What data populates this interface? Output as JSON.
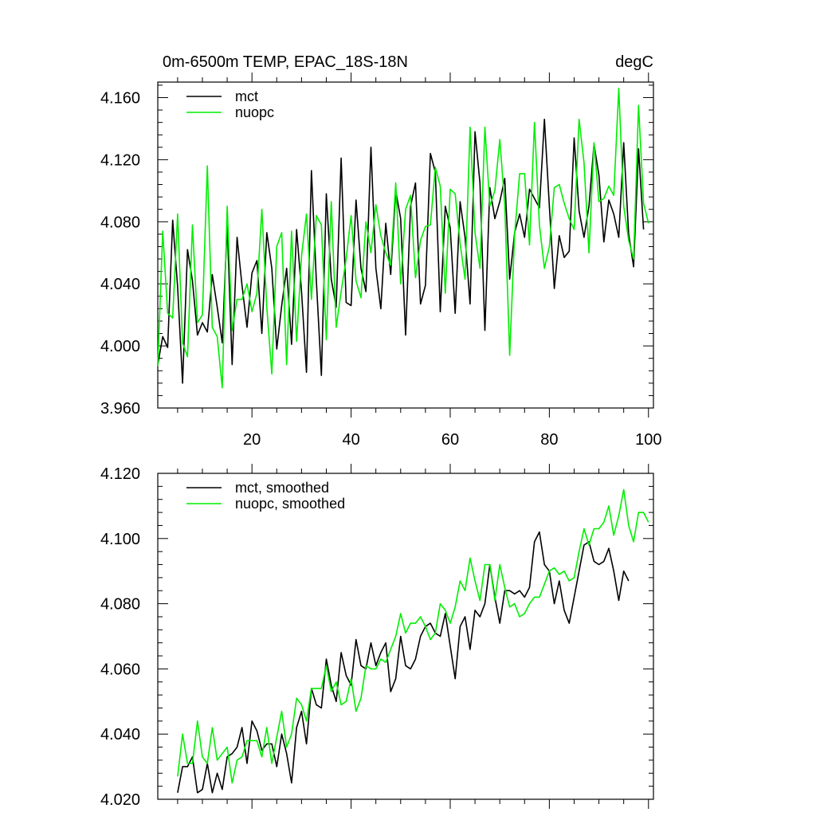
{
  "chart_data": [
    {
      "type": "line",
      "title": "0m-6500m TEMP, EPAC_18S-18N",
      "units": "degC",
      "xlim": [
        1,
        101
      ],
      "ylim": [
        3.96,
        4.17
      ],
      "x_ticks": [
        20,
        40,
        60,
        80,
        100
      ],
      "y_ticks": [
        3.96,
        4.0,
        4.04,
        4.08,
        4.12,
        4.16
      ],
      "y_tick_labels": [
        "3.960",
        "4.000",
        "4.040",
        "4.080",
        "4.120",
        "4.160"
      ],
      "legend_position": "top-left",
      "series": [
        {
          "name": "mct",
          "color": "#000000",
          "x_start": 1,
          "values": [
            3.988,
            4.006,
            3.999,
            4.081,
            4.038,
            3.976,
            4.062,
            4.042,
            4.007,
            4.015,
            4.009,
            4.046,
            4.025,
            4.002,
            4.078,
            3.988,
            4.07,
            4.039,
            4.012,
            4.047,
            4.055,
            4.008,
            4.073,
            4.05,
            3.998,
            4.026,
            4.05,
            4.001,
            4.075,
            4.035,
            3.983,
            4.113,
            4.042,
            3.981,
            4.098,
            4.043,
            4.025,
            4.121,
            4.028,
            4.026,
            4.094,
            4.05,
            4.035,
            4.128,
            4.05,
            4.024,
            4.079,
            4.046,
            4.1,
            4.082,
            4.007,
            4.09,
            4.105,
            4.027,
            4.039,
            4.124,
            4.112,
            4.022,
            4.09,
            4.076,
            4.021,
            4.093,
            4.07,
            4.027,
            4.138,
            4.105,
            4.01,
            4.102,
            4.082,
            4.093,
            4.108,
            4.043,
            4.073,
            4.085,
            4.07,
            4.101,
            4.095,
            4.089,
            4.146,
            4.09,
            4.037,
            4.071,
            4.057,
            4.061,
            4.134,
            4.087,
            4.07,
            4.09,
            4.13,
            4.11,
            4.067,
            4.094,
            4.085,
            4.07,
            4.131,
            4.072,
            4.051,
            4.127,
            4.075
          ]
        },
        {
          "name": "nuopc",
          "color": "#00ee00",
          "x_start": 1,
          "values": [
            3.987,
            4.074,
            4.021,
            4.018,
            4.085,
            4.002,
            3.993,
            4.078,
            4.015,
            4.02,
            4.116,
            4.012,
            4.006,
            3.973,
            4.09,
            4.01,
            4.03,
            4.03,
            4.04,
            4.022,
            4.034,
            4.088,
            4.025,
            3.982,
            4.064,
            4.073,
            3.988,
            4.074,
            4.003,
            4.058,
            4.085,
            4.03,
            4.084,
            4.078,
            4.004,
            4.093,
            4.012,
            4.035,
            4.056,
            4.084,
            4.042,
            4.031,
            4.08,
            4.06,
            4.091,
            4.071,
            4.06,
            4.052,
            4.105,
            4.04,
            4.088,
            4.097,
            4.044,
            4.068,
            4.077,
            4.078,
            4.115,
            4.103,
            4.034,
            4.101,
            4.098,
            4.066,
            4.043,
            4.141,
            4.073,
            4.05,
            4.141,
            4.09,
            4.1,
            4.133,
            4.091,
            3.994,
            4.072,
            4.111,
            4.111,
            4.065,
            4.144,
            4.078,
            4.05,
            4.064,
            4.102,
            4.104,
            4.092,
            4.082,
            4.075,
            4.146,
            4.118,
            4.06,
            4.131,
            4.093,
            4.095,
            4.103,
            4.097,
            4.166,
            4.09,
            4.068,
            4.056,
            4.155,
            4.092,
            4.079
          ]
        }
      ]
    },
    {
      "type": "line",
      "title": "",
      "xlim": [
        1,
        101
      ],
      "ylim": [
        4.02,
        4.12
      ],
      "y_ticks": [
        4.02,
        4.04,
        4.06,
        4.08,
        4.1,
        4.12
      ],
      "y_tick_labels": [
        "4.020",
        "4.040",
        "4.060",
        "4.080",
        "4.100",
        "4.120"
      ],
      "legend_position": "top-left",
      "series": [
        {
          "name": "mct, smoothed",
          "color": "#000000",
          "x_start": 5,
          "values": [
            4.022,
            4.03,
            4.03,
            4.033,
            4.022,
            4.023,
            4.031,
            4.022,
            4.028,
            4.023,
            4.033,
            4.034,
            4.036,
            4.042,
            4.031,
            4.044,
            4.041,
            4.035,
            4.037,
            4.037,
            4.03,
            4.04,
            4.034,
            4.025,
            4.042,
            4.047,
            4.037,
            4.054,
            4.049,
            4.048,
            4.063,
            4.055,
            4.05,
            4.065,
            4.058,
            4.055,
            4.069,
            4.061,
            4.06,
            4.068,
            4.061,
            4.065,
            4.068,
            4.053,
            4.057,
            4.07,
            4.061,
            4.06,
            4.063,
            4.07,
            4.073,
            4.074,
            4.071,
            4.07,
            4.077,
            4.067,
            4.057,
            4.073,
            4.076,
            4.066,
            4.078,
            4.076,
            4.08,
            4.092,
            4.082,
            4.074,
            4.084,
            4.084,
            4.083,
            4.084,
            4.082,
            4.085,
            4.099,
            4.102,
            4.092,
            4.09,
            4.08,
            4.087,
            4.078,
            4.074,
            4.082,
            4.09,
            4.098,
            4.099,
            4.093,
            4.092,
            4.093,
            4.097,
            4.09,
            4.081,
            4.09,
            4.087
          ]
        },
        {
          "name": "nuopc, smoothed",
          "color": "#00ee00",
          "x_start": 5,
          "values": [
            4.027,
            4.04,
            4.031,
            4.031,
            4.044,
            4.033,
            4.031,
            4.042,
            4.032,
            4.034,
            4.036,
            4.025,
            4.032,
            4.033,
            4.038,
            4.038,
            4.038,
            4.033,
            4.042,
            4.031,
            4.039,
            4.047,
            4.036,
            4.04,
            4.051,
            4.049,
            4.044,
            4.054,
            4.054,
            4.054,
            4.061,
            4.053,
            4.056,
            4.049,
            4.05,
            4.057,
            4.047,
            4.051,
            4.061,
            4.06,
            4.06,
            4.063,
            4.062,
            4.066,
            4.07,
            4.077,
            4.071,
            4.074,
            4.074,
            4.076,
            4.073,
            4.069,
            4.071,
            4.08,
            4.078,
            4.074,
            4.079,
            4.087,
            4.084,
            4.094,
            4.087,
            4.081,
            4.092,
            4.092,
            4.081,
            4.092,
            4.085,
            4.079,
            4.08,
            4.076,
            4.077,
            4.08,
            4.082,
            4.082,
            4.086,
            4.09,
            4.091,
            4.089,
            4.09,
            4.087,
            4.088,
            4.096,
            4.103,
            4.098,
            4.103,
            4.103,
            4.105,
            4.11,
            4.101,
            4.107,
            4.115,
            4.104,
            4.099,
            4.108,
            4.108,
            4.105
          ]
        }
      ]
    }
  ]
}
